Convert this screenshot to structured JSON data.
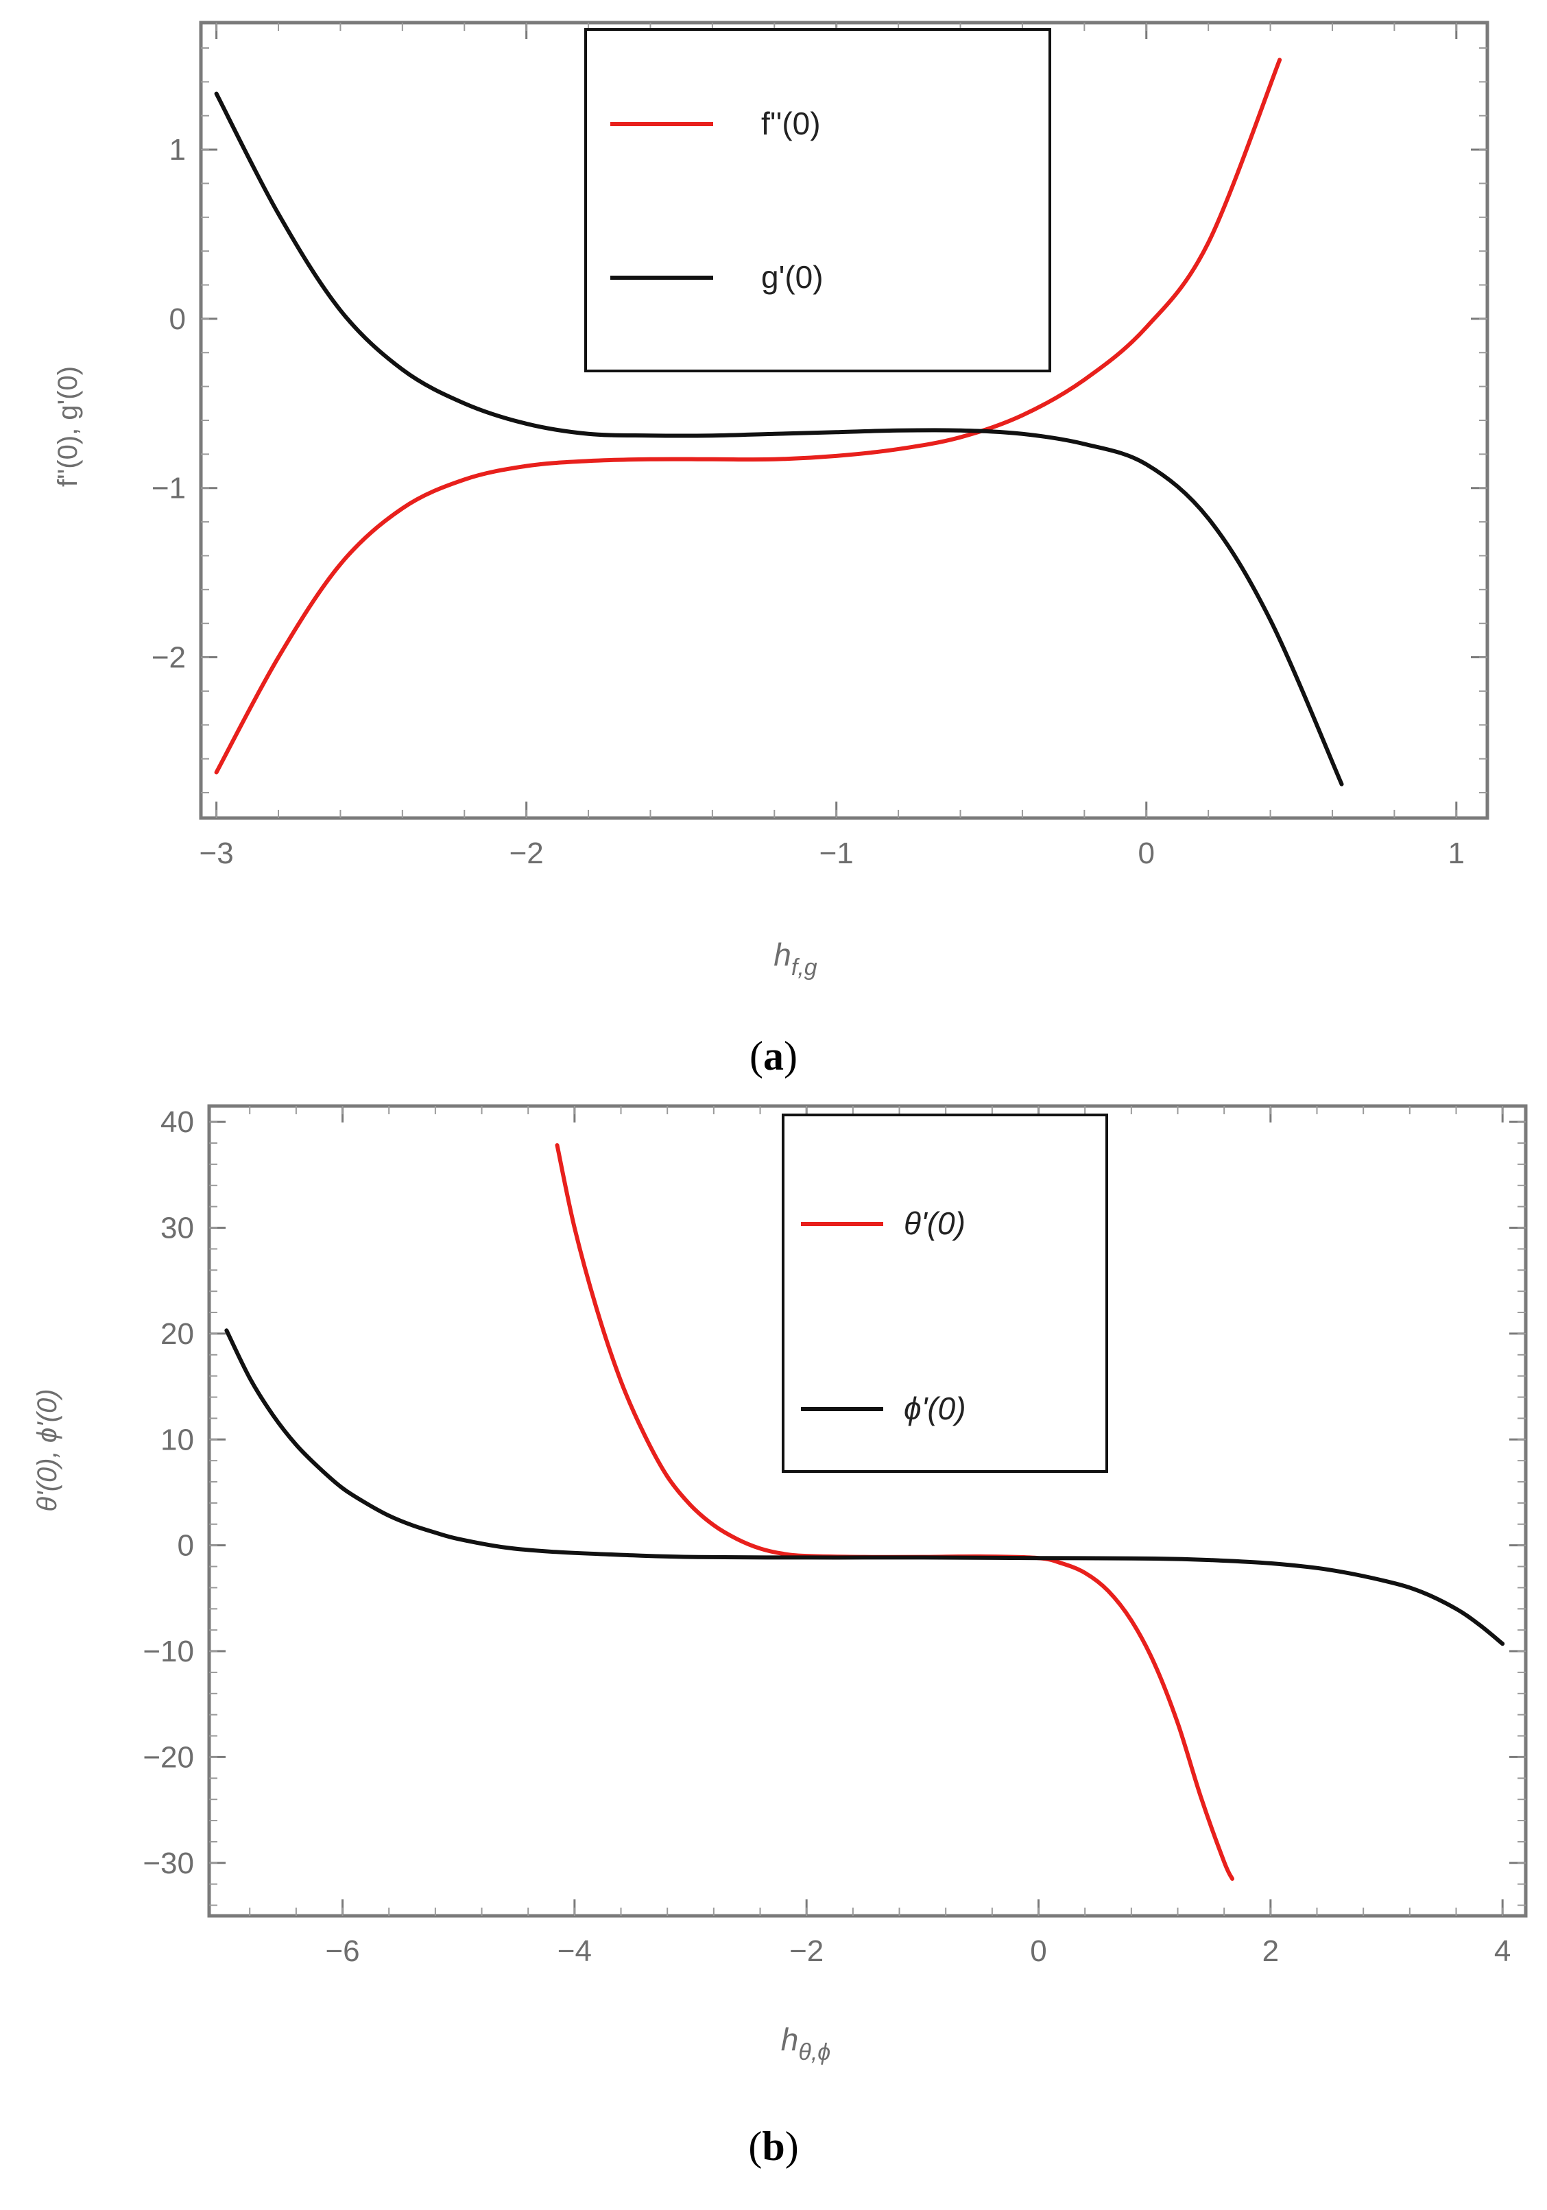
{
  "chart_data": [
    {
      "type": "line",
      "panel_label": "a",
      "caption": "(a)",
      "xlabel": "h",
      "xlabel_sub": "f,g",
      "ylabel": "f''(0), g'(0)",
      "xlim": [
        -3.05,
        1.1
      ],
      "ylim": [
        -2.95,
        1.75
      ],
      "x_ticks": [
        -3,
        -2,
        -1,
        0,
        1
      ],
      "x_tick_labels": [
        "−3",
        "−2",
        "−1",
        "0",
        "1"
      ],
      "y_ticks": [
        -2,
        -1,
        0,
        1
      ],
      "y_tick_labels": [
        "−2",
        "−1",
        "0",
        "1"
      ],
      "legend_position": "top-center",
      "series": [
        {
          "name": "f''(0)",
          "legend_label": "f''(0)",
          "color": "#e8201c",
          "x": [
            -3.0,
            -2.8,
            -2.6,
            -2.4,
            -2.2,
            -2.0,
            -1.8,
            -1.6,
            -1.4,
            -1.2,
            -1.0,
            -0.8,
            -0.6,
            -0.4,
            -0.2,
            0.0,
            0.2,
            0.43
          ],
          "y": [
            -2.68,
            -2.0,
            -1.45,
            -1.12,
            -0.95,
            -0.87,
            -0.84,
            -0.83,
            -0.83,
            -0.83,
            -0.81,
            -0.77,
            -0.7,
            -0.57,
            -0.36,
            -0.05,
            0.45,
            1.53
          ]
        },
        {
          "name": "g'(0)",
          "legend_label": "g'(0)",
          "color": "#111111",
          "x": [
            -3.0,
            -2.8,
            -2.6,
            -2.4,
            -2.2,
            -2.0,
            -1.8,
            -1.6,
            -1.4,
            -1.2,
            -1.0,
            -0.8,
            -0.6,
            -0.4,
            -0.2,
            0.0,
            0.2,
            0.4,
            0.63
          ],
          "y": [
            1.33,
            0.62,
            0.05,
            -0.3,
            -0.5,
            -0.62,
            -0.68,
            -0.69,
            -0.69,
            -0.68,
            -0.67,
            -0.66,
            -0.66,
            -0.68,
            -0.74,
            -0.86,
            -1.18,
            -1.78,
            -2.75
          ]
        }
      ]
    },
    {
      "type": "line",
      "panel_label": "b",
      "caption": "(b)",
      "xlabel": "h",
      "xlabel_sub": "θ,ϕ",
      "ylabel": "θ'(0), ϕ'(0)",
      "xlim": [
        -7.15,
        4.2
      ],
      "ylim": [
        -35,
        41.5
      ],
      "x_ticks": [
        -6,
        -4,
        -2,
        0,
        2,
        4
      ],
      "x_tick_labels": [
        "−6",
        "−4",
        "−2",
        "0",
        "2",
        "4"
      ],
      "y_ticks": [
        -30,
        -20,
        -10,
        0,
        10,
        20,
        30,
        40
      ],
      "y_tick_labels": [
        "−30",
        "−20",
        "−10",
        "0",
        "10",
        "20",
        "30",
        "40"
      ],
      "legend_position": "top-center",
      "series": [
        {
          "name": "θ'(0)",
          "legend_label": "θ'(0)",
          "color": "#e8201c",
          "x": [
            -4.15,
            -4.0,
            -3.8,
            -3.6,
            -3.4,
            -3.2,
            -3.0,
            -2.8,
            -2.6,
            -2.4,
            -2.2,
            -2.0,
            -1.5,
            -1.0,
            -0.5,
            0.0,
            0.2,
            0.4,
            0.6,
            0.8,
            1.0,
            1.2,
            1.4,
            1.6,
            1.67
          ],
          "y": [
            37.8,
            30.0,
            22.0,
            15.5,
            10.5,
            6.5,
            3.8,
            1.9,
            0.6,
            -0.3,
            -0.8,
            -1.0,
            -1.1,
            -1.1,
            -1.05,
            -1.2,
            -1.7,
            -2.6,
            -4.3,
            -7.1,
            -11.2,
            -16.8,
            -23.8,
            -29.9,
            -31.5
          ]
        },
        {
          "name": "ϕ'(0)",
          "legend_label": "ϕ'(0)",
          "color": "#111111",
          "x": [
            -7.0,
            -6.8,
            -6.6,
            -6.4,
            -6.2,
            -6.0,
            -5.8,
            -5.6,
            -5.4,
            -5.2,
            -5.0,
            -4.6,
            -4.2,
            -3.6,
            -3.0,
            -2.0,
            -1.0,
            0.0,
            1.0,
            1.5,
            2.0,
            2.5,
            3.0,
            3.3,
            3.6,
            3.8,
            4.0
          ],
          "y": [
            20.3,
            15.8,
            12.3,
            9.5,
            7.3,
            5.4,
            4.0,
            2.8,
            1.9,
            1.2,
            0.6,
            -0.2,
            -0.6,
            -0.9,
            -1.1,
            -1.15,
            -1.15,
            -1.2,
            -1.25,
            -1.4,
            -1.7,
            -2.3,
            -3.4,
            -4.4,
            -6.0,
            -7.5,
            -9.3
          ]
        }
      ]
    }
  ]
}
